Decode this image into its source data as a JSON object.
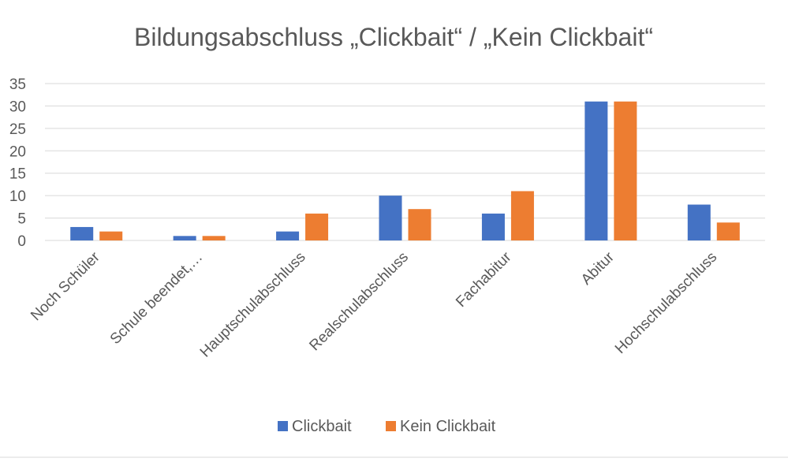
{
  "chart_data": {
    "type": "bar",
    "title": "Bildungsabschluss „Clickbait“ / „Kein Clickbait“",
    "xlabel": "",
    "ylabel": "",
    "categories": [
      "Noch Schüler",
      "Schule beendet,…",
      "Hauptschulabschluss",
      "Realschulabschluss",
      "Fachabitur",
      "Abitur",
      "Hochschulabschluss"
    ],
    "series": [
      {
        "name": "Clickbait",
        "color": "#4472C4",
        "values": [
          3,
          1,
          2,
          10,
          6,
          31,
          8
        ]
      },
      {
        "name": "Kein Clickbait",
        "color": "#ED7D31",
        "values": [
          2,
          1,
          6,
          7,
          11,
          31,
          4
        ]
      }
    ],
    "ylim": [
      0,
      35
    ],
    "yticks": [
      0,
      5,
      10,
      15,
      20,
      25,
      30,
      35
    ],
    "grid": true,
    "legend_position": "bottom"
  }
}
